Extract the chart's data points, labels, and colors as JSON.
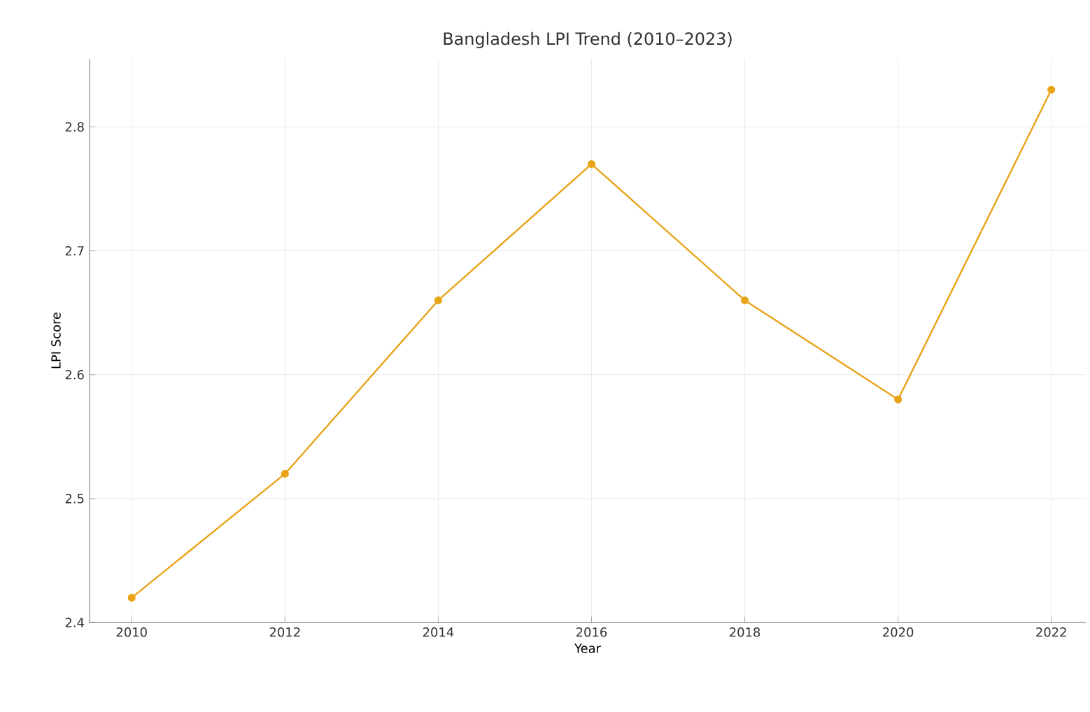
{
  "chart_data": {
    "type": "line",
    "title": "Bangladesh LPI Trend (2010–2023)",
    "xlabel": "Year",
    "ylabel": "LPI Score",
    "x": [
      2010,
      2012,
      2014,
      2016,
      2018,
      2020,
      2022
    ],
    "series": [
      {
        "color": "#e8a317",
        "values": [
          2.42,
          2.52,
          2.66,
          2.77,
          2.66,
          2.58,
          2.83
        ]
      }
    ],
    "xlim": [
      2009.45,
      2022.45
    ],
    "ylim": [
      2.4,
      2.855
    ],
    "xticks": [
      2010,
      2012,
      2014,
      2016,
      2018,
      2020,
      2022
    ],
    "yticks": [
      2.4,
      2.5,
      2.6,
      2.7,
      2.8
    ],
    "grid": true,
    "marker": "circle",
    "line_style": "solid"
  }
}
